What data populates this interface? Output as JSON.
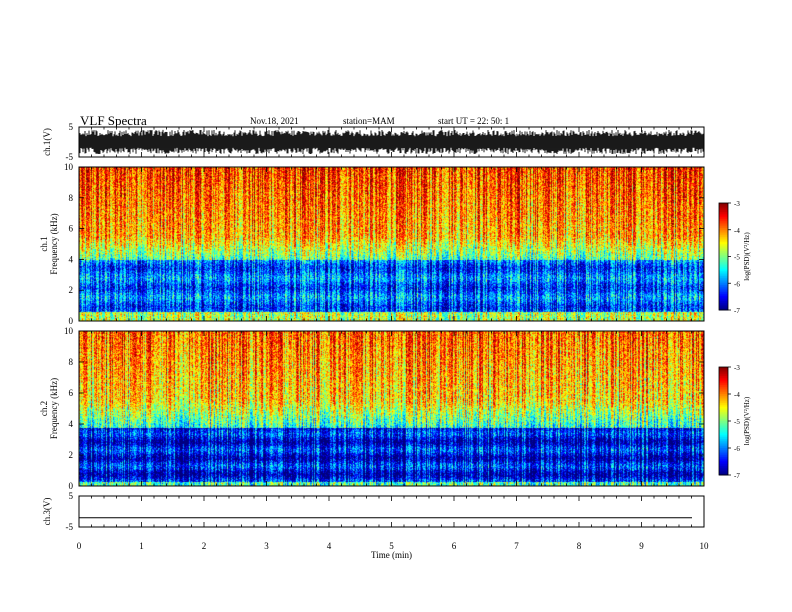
{
  "header": {
    "title": "VLF Spectra",
    "date": "Nov.18, 2021",
    "station": "station=MAM",
    "start": "start UT =  22: 50: 1"
  },
  "chart_data": [
    {
      "type": "line",
      "panel": "ch1-waveform",
      "ylabel": "ch.1(V)",
      "ylim": [
        -5,
        5
      ],
      "yticks": [
        "5",
        "-5"
      ],
      "xlim": [
        0,
        10
      ],
      "description_values": {
        "signal": "dense noisy waveform filling roughly -4 to 4 V"
      }
    },
    {
      "type": "heatmap",
      "panel": "ch1-spectrogram",
      "ylabel_top": "ch.1",
      "ylabel": "Frequency (kHz)",
      "ylim": [
        0,
        10
      ],
      "yticks": [
        "0",
        "2",
        "4",
        "6",
        "8",
        "10"
      ],
      "xlim": [
        0,
        10
      ],
      "colorbar": {
        "label": "log(PSD)(V²/Hz)",
        "range": [
          -7,
          -3
        ],
        "ticks": [
          "-3",
          "-4",
          "-5",
          "-6",
          "-7"
        ]
      }
    },
    {
      "type": "heatmap",
      "panel": "ch2-spectrogram",
      "ylabel_top": "ch.2",
      "ylabel": "Frequency (kHz)",
      "ylim": [
        0,
        10
      ],
      "yticks": [
        "0",
        "2",
        "4",
        "6",
        "8",
        "10"
      ],
      "xlim": [
        0,
        10
      ],
      "colorbar": {
        "label": "log(PSD)(V²/Hz)",
        "range": [
          -7,
          -3
        ],
        "ticks": [
          "-3",
          "-4",
          "-5",
          "-6",
          "-7"
        ]
      }
    },
    {
      "type": "line",
      "panel": "ch3-waveform",
      "ylabel": "ch.3(V)",
      "ylim": [
        -5,
        5
      ],
      "yticks": [
        "5",
        "-5"
      ],
      "xlim": [
        0,
        10
      ],
      "description_values": {
        "signal": "flat line at about -2 V"
      }
    }
  ],
  "xaxis": {
    "label": "Time (min)",
    "ticks": [
      "0",
      "1",
      "2",
      "3",
      "4",
      "5",
      "6",
      "7",
      "8",
      "9",
      "10"
    ]
  }
}
